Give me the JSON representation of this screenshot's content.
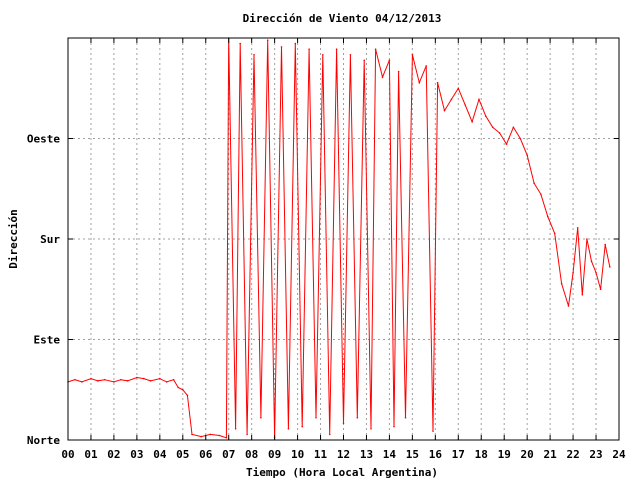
{
  "chart_data": {
    "type": "line",
    "title": "Dirección de Viento 04/12/2013",
    "xlabel": "Tiempo (Hora Local Argentina)",
    "ylabel": "Dirección",
    "xlim": [
      0,
      24
    ],
    "ylim": [
      0,
      360
    ],
    "x_ticks": [
      {
        "v": 0,
        "label": "00"
      },
      {
        "v": 1,
        "label": "01"
      },
      {
        "v": 2,
        "label": "02"
      },
      {
        "v": 3,
        "label": "03"
      },
      {
        "v": 4,
        "label": "04"
      },
      {
        "v": 5,
        "label": "05"
      },
      {
        "v": 6,
        "label": "06"
      },
      {
        "v": 7,
        "label": "07"
      },
      {
        "v": 8,
        "label": "08"
      },
      {
        "v": 9,
        "label": "09"
      },
      {
        "v": 10,
        "label": "10"
      },
      {
        "v": 11,
        "label": "11"
      },
      {
        "v": 12,
        "label": "12"
      },
      {
        "v": 13,
        "label": "13"
      },
      {
        "v": 14,
        "label": "14"
      },
      {
        "v": 15,
        "label": "15"
      },
      {
        "v": 16,
        "label": "16"
      },
      {
        "v": 17,
        "label": "17"
      },
      {
        "v": 18,
        "label": "18"
      },
      {
        "v": 19,
        "label": "19"
      },
      {
        "v": 20,
        "label": "20"
      },
      {
        "v": 21,
        "label": "21"
      },
      {
        "v": 22,
        "label": "22"
      },
      {
        "v": 23,
        "label": "23"
      },
      {
        "v": 24,
        "label": "24"
      }
    ],
    "y_ticks": [
      {
        "v": 0,
        "label": "Norte"
      },
      {
        "v": 90,
        "label": "Este"
      },
      {
        "v": 180,
        "label": "Sur"
      },
      {
        "v": 270,
        "label": "Oeste"
      }
    ],
    "grid": true,
    "line_color": "#ff0000",
    "series": [
      {
        "values": [
          [
            0.0,
            52
          ],
          [
            0.3,
            54
          ],
          [
            0.6,
            52
          ],
          [
            1.0,
            55
          ],
          [
            1.3,
            53
          ],
          [
            1.6,
            54
          ],
          [
            2.0,
            52
          ],
          [
            2.3,
            54
          ],
          [
            2.6,
            53
          ],
          [
            3.0,
            56
          ],
          [
            3.3,
            55
          ],
          [
            3.6,
            53
          ],
          [
            4.0,
            55
          ],
          [
            4.3,
            52
          ],
          [
            4.6,
            54
          ],
          [
            4.8,
            47
          ],
          [
            5.0,
            45
          ],
          [
            5.2,
            40
          ],
          [
            5.4,
            5
          ],
          [
            5.8,
            3
          ],
          [
            6.2,
            5
          ],
          [
            6.6,
            4
          ],
          [
            6.9,
            2
          ],
          [
            7.0,
            360
          ],
          [
            7.3,
            10
          ],
          [
            7.5,
            355
          ],
          [
            7.8,
            5
          ],
          [
            8.1,
            345
          ],
          [
            8.4,
            20
          ],
          [
            8.7,
            358
          ],
          [
            9.0,
            2
          ],
          [
            9.3,
            352
          ],
          [
            9.6,
            10
          ],
          [
            9.9,
            355
          ],
          [
            10.2,
            12
          ],
          [
            10.5,
            350
          ],
          [
            10.8,
            20
          ],
          [
            11.1,
            345
          ],
          [
            11.4,
            5
          ],
          [
            11.7,
            350
          ],
          [
            12.0,
            15
          ],
          [
            12.3,
            345
          ],
          [
            12.6,
            20
          ],
          [
            12.9,
            340
          ],
          [
            13.2,
            10
          ],
          [
            13.4,
            350
          ],
          [
            13.7,
            325
          ],
          [
            14.0,
            340
          ],
          [
            14.2,
            12
          ],
          [
            14.4,
            330
          ],
          [
            14.7,
            20
          ],
          [
            15.0,
            345
          ],
          [
            15.3,
            320
          ],
          [
            15.6,
            335
          ],
          [
            15.9,
            8
          ],
          [
            16.1,
            320
          ],
          [
            16.4,
            295
          ],
          [
            16.7,
            305
          ],
          [
            17.0,
            315
          ],
          [
            17.3,
            300
          ],
          [
            17.6,
            285
          ],
          [
            17.9,
            305
          ],
          [
            18.2,
            290
          ],
          [
            18.5,
            280
          ],
          [
            18.8,
            275
          ],
          [
            19.1,
            265
          ],
          [
            19.4,
            280
          ],
          [
            19.7,
            270
          ],
          [
            20.0,
            255
          ],
          [
            20.3,
            230
          ],
          [
            20.6,
            220
          ],
          [
            20.9,
            200
          ],
          [
            21.2,
            185
          ],
          [
            21.5,
            140
          ],
          [
            21.8,
            120
          ],
          [
            22.0,
            150
          ],
          [
            22.2,
            190
          ],
          [
            22.4,
            130
          ],
          [
            22.6,
            180
          ],
          [
            22.8,
            160
          ],
          [
            23.0,
            150
          ],
          [
            23.2,
            135
          ],
          [
            23.4,
            175
          ],
          [
            23.6,
            155
          ]
        ]
      }
    ]
  }
}
